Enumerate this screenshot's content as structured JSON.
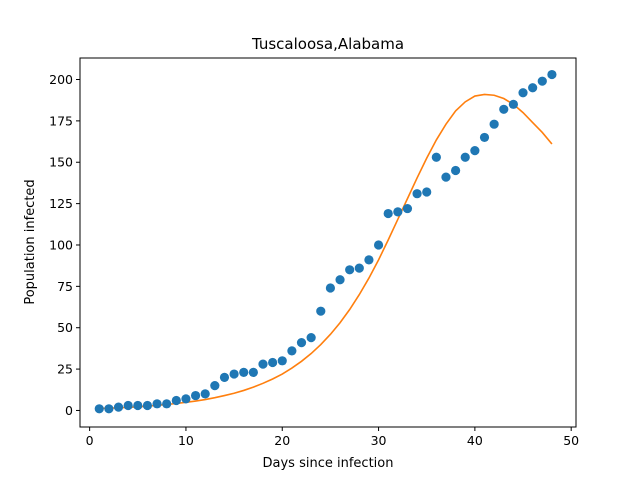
{
  "chart_data": {
    "type": "scatter",
    "title": "Tuscaloosa,Alabama",
    "xlabel": "Days since infection",
    "ylabel": "Population infected",
    "xlim": [
      -1,
      50.5
    ],
    "ylim": [
      -10,
      213
    ],
    "xticks": [
      0,
      10,
      20,
      30,
      40,
      50
    ],
    "yticks": [
      0,
      25,
      50,
      75,
      100,
      125,
      150,
      175,
      200
    ],
    "grid": false,
    "series": [
      {
        "kind": "scatter",
        "color": "#1f77b4",
        "x": [
          1,
          2,
          3,
          4,
          5,
          6,
          7,
          8,
          9,
          10,
          11,
          12,
          13,
          14,
          15,
          16,
          17,
          18,
          19,
          20,
          21,
          22,
          23,
          24,
          25,
          26,
          27,
          28,
          29,
          30,
          31,
          32,
          33,
          34,
          35,
          36,
          37,
          38,
          39,
          40,
          41,
          42,
          43,
          44,
          45,
          46,
          47,
          48
        ],
        "y": [
          1,
          1,
          2,
          3,
          3,
          3,
          4,
          4,
          6,
          7,
          9,
          10,
          15,
          20,
          22,
          23,
          23,
          28,
          29,
          30,
          36,
          41,
          44,
          60,
          74,
          79,
          85,
          86,
          91,
          100,
          119,
          120,
          122,
          131,
          132,
          153,
          141,
          145,
          153,
          157,
          165,
          173,
          182,
          185,
          192,
          195,
          199,
          203
        ]
      },
      {
        "kind": "line",
        "color": "#ff7f0e",
        "x": [
          1,
          2,
          3,
          4,
          5,
          6,
          7,
          8,
          9,
          10,
          11,
          12,
          13,
          14,
          15,
          16,
          17,
          18,
          19,
          20,
          21,
          22,
          23,
          24,
          25,
          26,
          27,
          28,
          29,
          30,
          31,
          32,
          33,
          34,
          35,
          36,
          37,
          38,
          39,
          40,
          41,
          42,
          43,
          44,
          45,
          46,
          47,
          48
        ],
        "y": [
          1.2,
          1.4,
          1.6,
          1.9,
          2.2,
          2.6,
          3.1,
          3.6,
          4.2,
          4.9,
          5.7,
          6.6,
          7.7,
          9.0,
          10.4,
          12.1,
          14.1,
          16.4,
          19.0,
          22.0,
          25.6,
          29.7,
          34.4,
          39.8,
          46.0,
          53.0,
          61.0,
          70.0,
          80.0,
          91.0,
          103.0,
          115.5,
          128.0,
          140.5,
          152.5,
          163.5,
          173.0,
          181.0,
          186.5,
          190.0,
          191.0,
          190.5,
          188.5,
          185.0,
          180.0,
          174.0,
          168.0,
          161.0
        ]
      }
    ]
  }
}
